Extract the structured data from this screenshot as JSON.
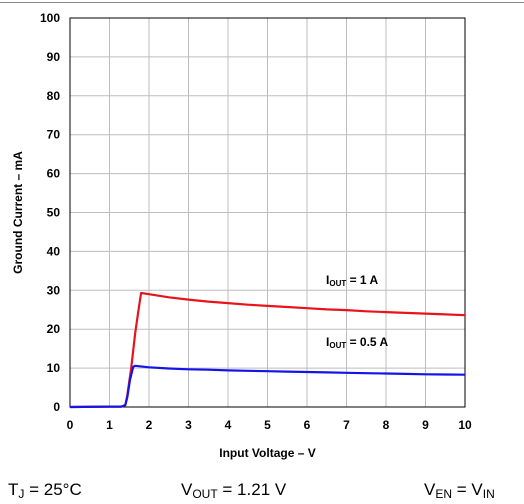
{
  "chart_data": {
    "type": "line",
    "xlabel": "Input Voltage – V",
    "ylabel": "Ground Current – mA",
    "xlim": [
      0,
      10
    ],
    "ylim": [
      0,
      100
    ],
    "xticks": [
      "0",
      "1",
      "2",
      "3",
      "4",
      "5",
      "6",
      "7",
      "8",
      "9",
      "10"
    ],
    "yticks": [
      "0",
      "10",
      "20",
      "30",
      "40",
      "50",
      "60",
      "70",
      "80",
      "90",
      "100"
    ],
    "grid": true,
    "series": [
      {
        "name": "IOUT = 1 A",
        "label_main": "I",
        "label_sub": "OUT",
        "label_rest": " = 1 A",
        "color": "#e8141c",
        "x": [
          0,
          1.0,
          1.3,
          1.4,
          1.45,
          1.55,
          1.65,
          1.75,
          1.8,
          2.0,
          2.5,
          3.0,
          3.5,
          4.0,
          4.5,
          5.0,
          5.5,
          6.0,
          6.5,
          7.0,
          7.5,
          8.0,
          8.5,
          9.0,
          9.5,
          10.0
        ],
        "y": [
          0,
          0.1,
          0.1,
          0.5,
          3.0,
          10.0,
          19.0,
          26.0,
          29.3,
          29.0,
          28.2,
          27.6,
          27.1,
          26.7,
          26.3,
          26.0,
          25.7,
          25.4,
          25.1,
          24.9,
          24.6,
          24.4,
          24.2,
          24.0,
          23.8,
          23.6
        ]
      },
      {
        "name": "IOUT = 0.5 A",
        "label_main": "I",
        "label_sub": "OUT",
        "label_rest": " = 0.5 A",
        "color": "#1414e8",
        "x": [
          0,
          1.0,
          1.3,
          1.4,
          1.45,
          1.52,
          1.6,
          1.65,
          2.0,
          2.5,
          3.0,
          3.5,
          4.0,
          4.5,
          5.0,
          5.5,
          6.0,
          6.5,
          7.0,
          7.5,
          8.0,
          8.5,
          9.0,
          9.5,
          10.0
        ],
        "y": [
          0,
          0.1,
          0.1,
          0.5,
          2.5,
          7.0,
          10.3,
          10.6,
          10.2,
          9.9,
          9.7,
          9.6,
          9.4,
          9.3,
          9.2,
          9.1,
          9.0,
          8.9,
          8.8,
          8.7,
          8.6,
          8.5,
          8.4,
          8.35,
          8.3
        ]
      }
    ]
  },
  "conditions": {
    "tj_main": "T",
    "tj_sub": "J",
    "tj_rest": " = 25°C",
    "vout_main": "V",
    "vout_sub": "OUT",
    "vout_rest": " = 1.21 V",
    "ven_main": "V",
    "ven_sub": "EN",
    "ven_mid": " = V",
    "ven_sub2": "IN"
  }
}
